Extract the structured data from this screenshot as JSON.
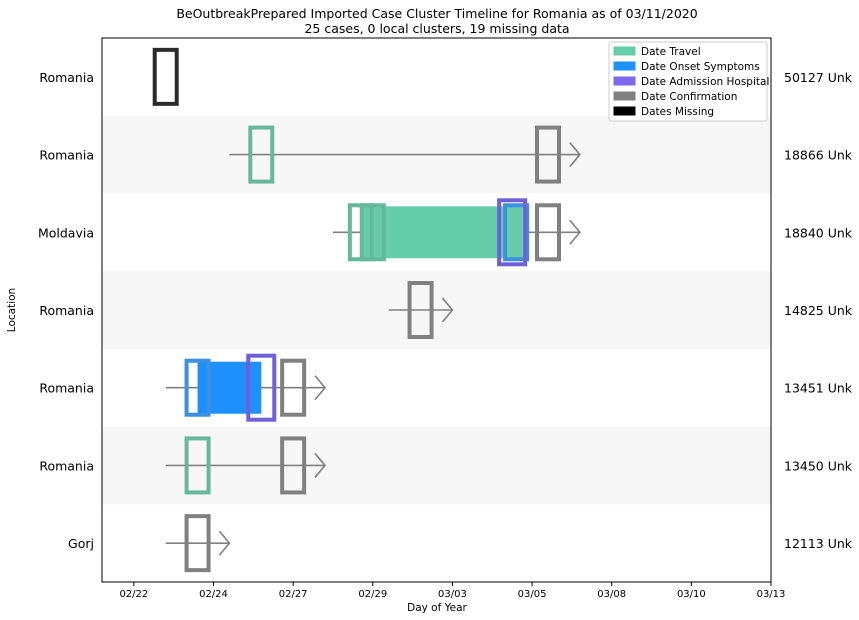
{
  "chart_data": {
    "type": "timeline",
    "title": "BeOutbreakPrepared Imported Case Cluster Timeline for Romania as of 03/11/2020",
    "subtitle": "25 cases, 0 local clusters, 19 missing data",
    "xlabel": "Day of Year",
    "ylabel": "Location",
    "x_tick_labels": [
      "02/22",
      "02/24",
      "02/27",
      "02/29",
      "03/03",
      "03/05",
      "03/08",
      "03/10",
      "03/13"
    ],
    "x_tick_values": [
      0,
      2,
      4,
      6,
      8,
      10,
      12,
      14,
      16
    ],
    "xlim": [
      -0.8,
      16
    ],
    "grid": false,
    "legend_position": "top-right",
    "legend": [
      {
        "label": "Date Travel",
        "color": "#66cdaa"
      },
      {
        "label": "Date Onset Symptoms",
        "color": "#1e90ff"
      },
      {
        "label": "Date Admission Hospital",
        "color": "#7b68ee"
      },
      {
        "label": "Date Confirmation",
        "color": "#808080"
      },
      {
        "label": "Dates Missing",
        "color": "#000000"
      }
    ],
    "rows": [
      {
        "location": "Romania",
        "case": "50127 Unk",
        "shaded": false,
        "line": null,
        "spans": [],
        "markers": [
          {
            "type": "missing",
            "x": 0.8
          }
        ]
      },
      {
        "location": "Romania",
        "case": "18866 Unk",
        "shaded": true,
        "line": [
          2.4,
          11.2
        ],
        "spans": [],
        "markers": [
          {
            "type": "travel",
            "x": 3.2
          },
          {
            "type": "confirmation",
            "x": 10.4
          }
        ]
      },
      {
        "location": "Moldavia",
        "case": "18840 Unk",
        "shaded": false,
        "line": [
          5.0,
          11.2
        ],
        "spans": [
          {
            "type": "travel",
            "from": 5.7,
            "to": 9.9
          }
        ],
        "markers": [
          {
            "type": "travel",
            "x": 5.7
          },
          {
            "type": "travel",
            "x": 6.0
          },
          {
            "type": "onset",
            "x": 9.6
          },
          {
            "type": "admission",
            "x": 9.5
          },
          {
            "type": "confirmation",
            "x": 10.4
          }
        ]
      },
      {
        "location": "Romania",
        "case": "14825 Unk",
        "shaded": true,
        "line": [
          6.4,
          8.0
        ],
        "spans": [],
        "markers": [
          {
            "type": "confirmation",
            "x": 7.2
          }
        ]
      },
      {
        "location": "Romania",
        "case": "13451 Unk",
        "shaded": false,
        "line": [
          0.8,
          4.8
        ],
        "spans": [
          {
            "type": "onset",
            "from": 1.6,
            "to": 3.2
          }
        ],
        "markers": [
          {
            "type": "onset",
            "x": 1.6
          },
          {
            "type": "admission",
            "x": 3.2
          },
          {
            "type": "confirmation",
            "x": 4.0
          }
        ]
      },
      {
        "location": "Romania",
        "case": "13450 Unk",
        "shaded": true,
        "line": [
          0.8,
          4.8
        ],
        "spans": [],
        "markers": [
          {
            "type": "travel",
            "x": 1.6
          },
          {
            "type": "confirmation",
            "x": 4.0
          }
        ]
      },
      {
        "location": "Gorj",
        "case": "12113 Unk",
        "shaded": false,
        "line": [
          0.8,
          2.4
        ],
        "spans": [],
        "markers": [
          {
            "type": "confirmation",
            "x": 1.6
          }
        ]
      }
    ]
  },
  "colors": {
    "travel_edge": "#66b89d",
    "travel_fill": "#66cdaa",
    "onset_edge": "#3d8fe0",
    "onset_fill": "#1e90ff",
    "admission_edge": "#7060d8",
    "confirmation_edge": "#808080",
    "missing_edge": "#2a2a2a",
    "shade": "#f7f7f7",
    "line": "#808080"
  }
}
